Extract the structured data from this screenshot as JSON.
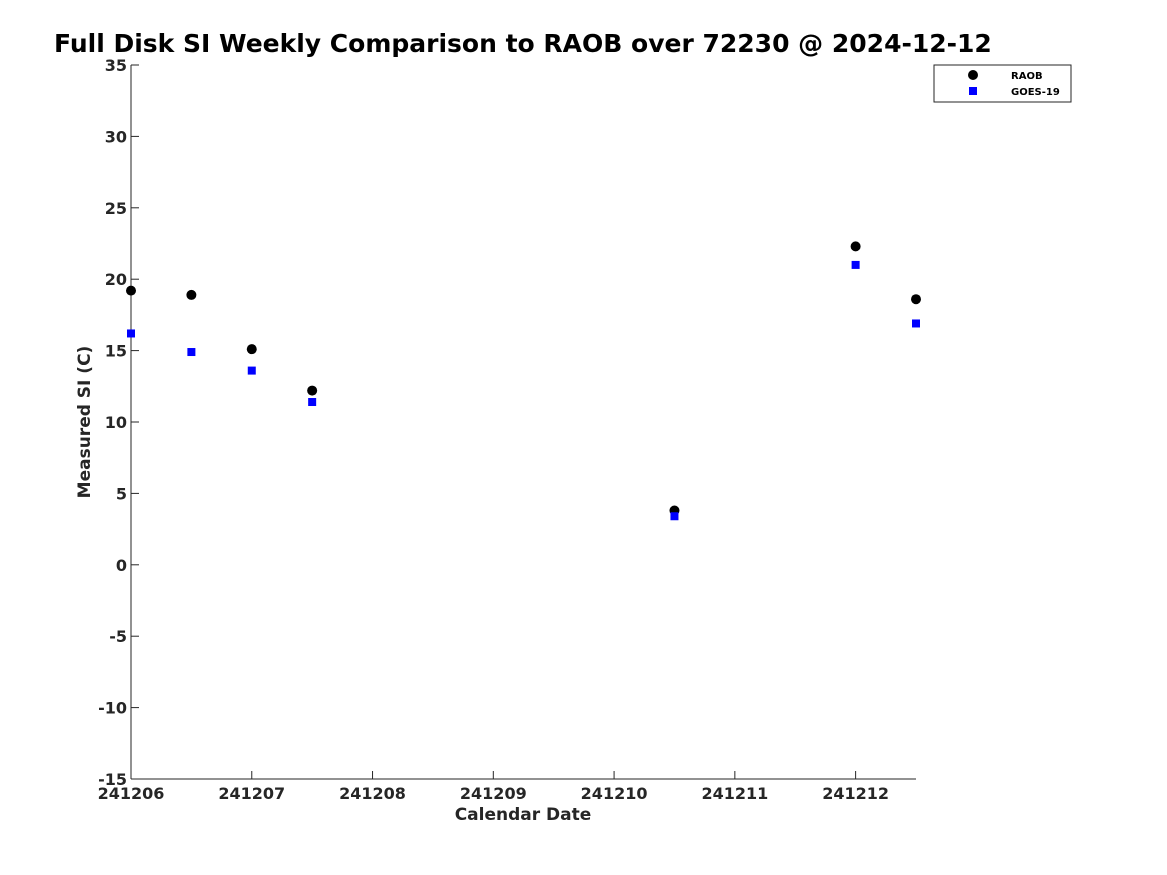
{
  "chart_data": {
    "type": "scatter",
    "title": "Full Disk SI Weekly Comparison to RAOB over 72230 @ 2024-12-12",
    "xlabel": "Calendar Date",
    "ylabel": "Measured SI (C)",
    "x_ticks": [
      "241206",
      "241207",
      "241208",
      "241209",
      "241210",
      "241211",
      "241212"
    ],
    "xlim": [
      "241206",
      "241212.5"
    ],
    "ylim": [
      -15,
      35
    ],
    "y_ticks": [
      35,
      30,
      25,
      20,
      15,
      10,
      5,
      0,
      -5,
      -10,
      -15
    ],
    "grid": false,
    "legend_position": "top-right",
    "series": [
      {
        "name": "RAOB",
        "marker": "circle",
        "color": "#000000",
        "x": [
          "241206",
          "241206.5",
          "241207",
          "241207.5",
          "241210.5",
          "241212",
          "241212.5"
        ],
        "y": [
          19.2,
          18.9,
          15.1,
          12.2,
          3.8,
          22.3,
          18.6
        ]
      },
      {
        "name": "GOES-19",
        "marker": "square",
        "color": "#0000ff",
        "x": [
          "241206",
          "241206.5",
          "241207",
          "241207.5",
          "241210.5",
          "241212",
          "241212.5"
        ],
        "y": [
          16.2,
          14.9,
          13.6,
          11.4,
          3.4,
          21.0,
          16.9
        ]
      }
    ]
  }
}
